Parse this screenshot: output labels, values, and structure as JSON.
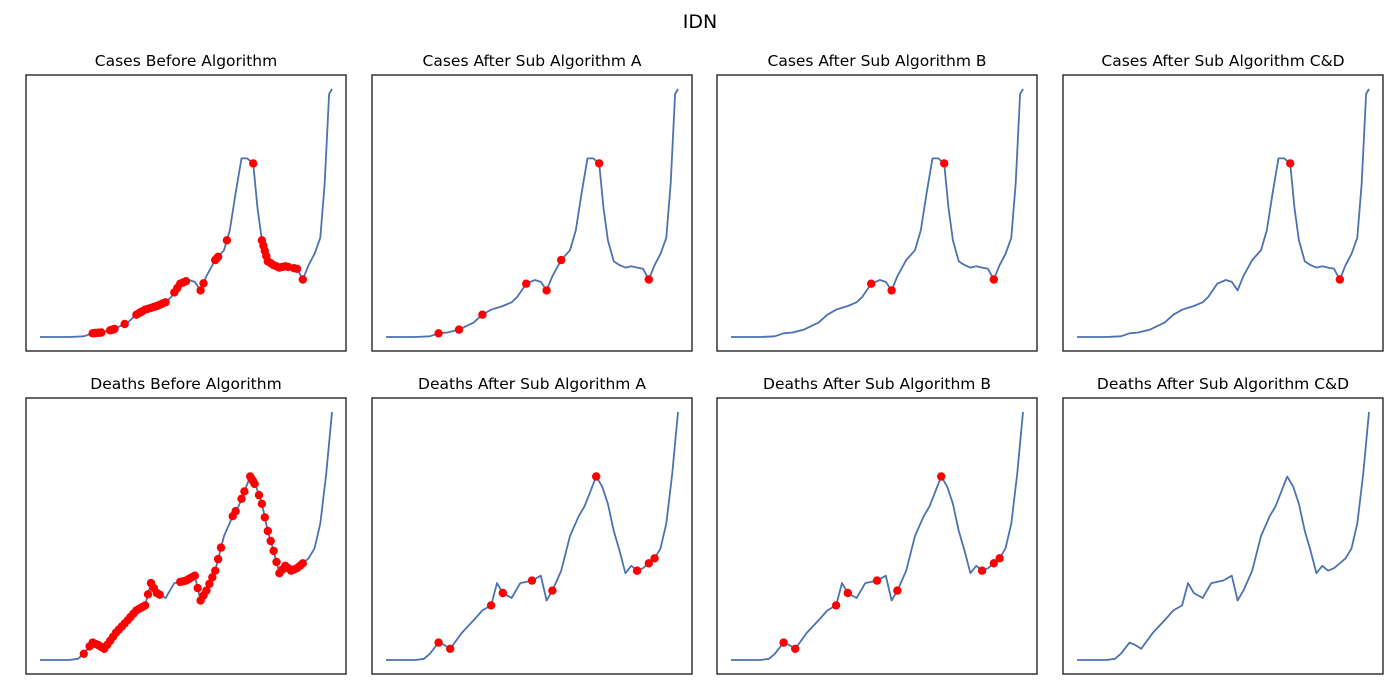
{
  "figure": {
    "title": "IDN"
  },
  "chart_data": [
    {
      "type": "line",
      "title": "Cases Before Algorithm",
      "series_ref": "cases",
      "markers_x": [
        0.18,
        0.185,
        0.19,
        0.195,
        0.2,
        0.205,
        0.21,
        0.24,
        0.245,
        0.25,
        0.255,
        0.29,
        0.33,
        0.34,
        0.345,
        0.35,
        0.36,
        0.37,
        0.38,
        0.39,
        0.4,
        0.41,
        0.42,
        0.43,
        0.46,
        0.47,
        0.48,
        0.49,
        0.5,
        0.55,
        0.56,
        0.6,
        0.605,
        0.61,
        0.64,
        0.73,
        0.76,
        0.765,
        0.77,
        0.775,
        0.78,
        0.79,
        0.8,
        0.81,
        0.82,
        0.83,
        0.84,
        0.85,
        0.87,
        0.88,
        0.9
      ]
    },
    {
      "type": "line",
      "title": "Cases After Sub Algorithm A",
      "series_ref": "cases",
      "markers_x": [
        0.18,
        0.25,
        0.33,
        0.48,
        0.55,
        0.6,
        0.73,
        0.9
      ]
    },
    {
      "type": "line",
      "title": "Cases After Sub Algorithm B",
      "series_ref": "cases",
      "markers_x": [
        0.48,
        0.55,
        0.73,
        0.9
      ]
    },
    {
      "type": "line",
      "title": "Cases After Sub Algorithm C&D",
      "series_ref": "cases",
      "markers_x": [
        0.73,
        0.9
      ]
    },
    {
      "type": "line",
      "title": "Deaths Before Algorithm",
      "series_ref": "deaths",
      "markers_x": [
        0.15,
        0.17,
        0.18,
        0.19,
        0.2,
        0.21,
        0.22,
        0.23,
        0.24,
        0.25,
        0.26,
        0.27,
        0.28,
        0.29,
        0.3,
        0.31,
        0.32,
        0.33,
        0.34,
        0.35,
        0.36,
        0.37,
        0.38,
        0.39,
        0.4,
        0.41,
        0.48,
        0.49,
        0.5,
        0.51,
        0.52,
        0.53,
        0.54,
        0.55,
        0.56,
        0.57,
        0.58,
        0.59,
        0.6,
        0.61,
        0.62,
        0.66,
        0.67,
        0.69,
        0.7,
        0.72,
        0.725,
        0.73,
        0.735,
        0.75,
        0.76,
        0.77,
        0.78,
        0.79,
        0.8,
        0.81,
        0.82,
        0.83,
        0.84,
        0.85,
        0.86,
        0.87,
        0.88,
        0.89,
        0.9
      ]
    },
    {
      "type": "line",
      "title": "Deaths After Sub Algorithm A",
      "series_ref": "deaths",
      "markers_x": [
        0.18,
        0.22,
        0.36,
        0.4,
        0.5,
        0.57,
        0.72,
        0.86,
        0.9,
        0.92
      ]
    },
    {
      "type": "line",
      "title": "Deaths After Sub Algorithm B",
      "series_ref": "deaths",
      "markers_x": [
        0.18,
        0.22,
        0.36,
        0.4,
        0.5,
        0.57,
        0.72,
        0.86,
        0.9,
        0.92
      ]
    },
    {
      "type": "line",
      "title": "Deaths After Sub Algorithm C&D",
      "series_ref": "deaths",
      "markers_x": []
    }
  ],
  "series": {
    "cases": {
      "x": [
        0,
        0.05,
        0.1,
        0.15,
        0.18,
        0.21,
        0.25,
        0.3,
        0.33,
        0.36,
        0.4,
        0.43,
        0.45,
        0.48,
        0.51,
        0.53,
        0.55,
        0.57,
        0.6,
        0.63,
        0.65,
        0.67,
        0.69,
        0.71,
        0.73,
        0.745,
        0.76,
        0.78,
        0.8,
        0.82,
        0.84,
        0.86,
        0.88,
        0.9,
        0.92,
        0.94,
        0.96,
        0.975,
        0.99,
        1.0
      ],
      "y": [
        0.0,
        0.0,
        0.0,
        0.003,
        0.015,
        0.018,
        0.03,
        0.058,
        0.09,
        0.11,
        0.125,
        0.14,
        0.162,
        0.215,
        0.23,
        0.222,
        0.188,
        0.245,
        0.31,
        0.35,
        0.43,
        0.58,
        0.72,
        0.72,
        0.7,
        0.52,
        0.39,
        0.305,
        0.29,
        0.28,
        0.285,
        0.28,
        0.275,
        0.232,
        0.29,
        0.335,
        0.4,
        0.62,
        0.98,
        1.0
      ]
    },
    "deaths": {
      "x": [
        0,
        0.05,
        0.1,
        0.13,
        0.15,
        0.18,
        0.2,
        0.22,
        0.26,
        0.3,
        0.33,
        0.36,
        0.38,
        0.4,
        0.43,
        0.46,
        0.5,
        0.53,
        0.55,
        0.57,
        0.6,
        0.63,
        0.66,
        0.68,
        0.7,
        0.72,
        0.74,
        0.76,
        0.78,
        0.8,
        0.82,
        0.84,
        0.86,
        0.88,
        0.9,
        0.92,
        0.94,
        0.96,
        0.98,
        1.0
      ],
      "y": [
        0.0,
        0.0,
        0.0,
        0.005,
        0.025,
        0.07,
        0.06,
        0.045,
        0.11,
        0.16,
        0.2,
        0.22,
        0.31,
        0.27,
        0.25,
        0.31,
        0.32,
        0.34,
        0.24,
        0.28,
        0.36,
        0.5,
        0.58,
        0.62,
        0.68,
        0.74,
        0.7,
        0.63,
        0.52,
        0.44,
        0.35,
        0.38,
        0.36,
        0.37,
        0.39,
        0.41,
        0.45,
        0.55,
        0.75,
        1.0
      ]
    }
  }
}
